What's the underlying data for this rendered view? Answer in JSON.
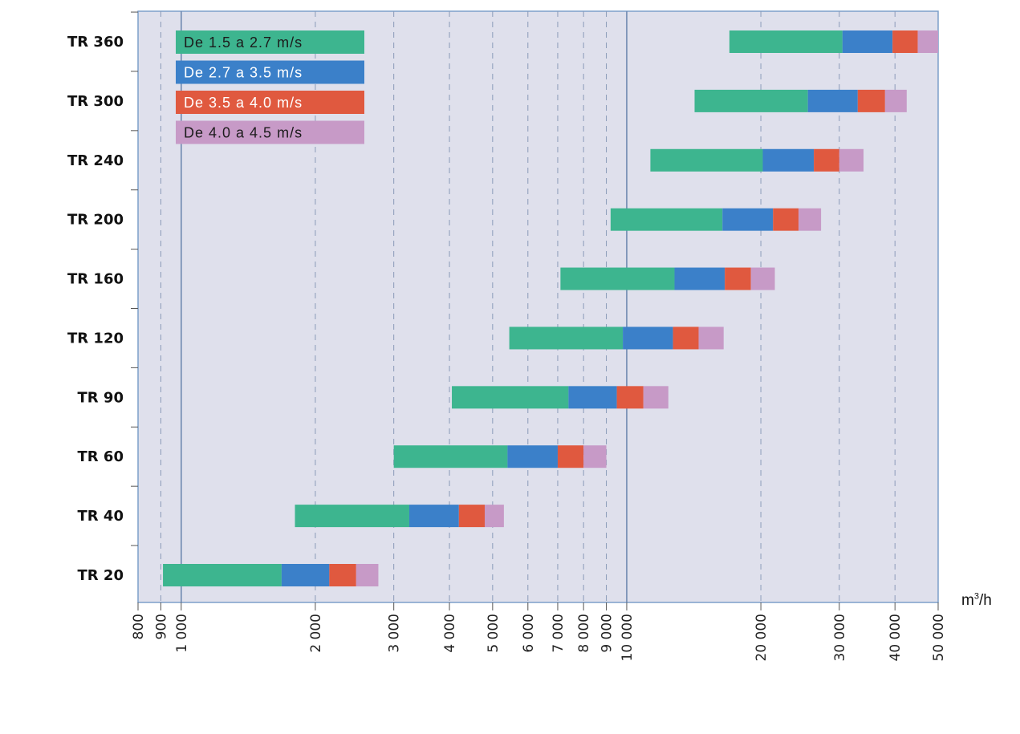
{
  "chart_data": {
    "type": "bar",
    "orientation": "horizontal",
    "stacked": true,
    "x_scale": "log",
    "xlim": [
      800,
      50000
    ],
    "xunit": "m³/h",
    "grid": true,
    "legend_position": "top-left",
    "categories": [
      "TR 360",
      "TR 300",
      "TR 240",
      "TR 200",
      "TR 160",
      "TR 120",
      "TR 90",
      "TR 60",
      "TR 40",
      "TR 20"
    ],
    "x_ticks": [
      {
        "value": 800,
        "label": "800",
        "major": false
      },
      {
        "value": 900,
        "label": "900",
        "major": false
      },
      {
        "value": 1000,
        "label": "1 000",
        "major": true
      },
      {
        "value": 2000,
        "label": "2 000",
        "major": false
      },
      {
        "value": 3000,
        "label": "3 000",
        "major": false
      },
      {
        "value": 4000,
        "label": "4 000",
        "major": false
      },
      {
        "value": 5000,
        "label": "5 000",
        "major": false
      },
      {
        "value": 6000,
        "label": "6 000",
        "major": false
      },
      {
        "value": 7000,
        "label": "7 000",
        "major": false
      },
      {
        "value": 8000,
        "label": "8 000",
        "major": false
      },
      {
        "value": 9000,
        "label": "9 000",
        "major": false
      },
      {
        "value": 10000,
        "label": "10 000",
        "major": true
      },
      {
        "value": 20000,
        "label": "20 000",
        "major": false
      },
      {
        "value": 30000,
        "label": "30 000",
        "major": false
      },
      {
        "value": 40000,
        "label": "40 000",
        "major": false
      },
      {
        "value": 50000,
        "label": "50 000",
        "major": false
      }
    ],
    "series": [
      {
        "name": "De 1.5 a 2.7 m/s",
        "color": "#3db58f"
      },
      {
        "name": "De 2.7 a 3.5 m/s",
        "color": "#3b80c9"
      },
      {
        "name": "De 3.5 a 4.0 m/s",
        "color": "#e0593f"
      },
      {
        "name": "De 4.0 a 4.5 m/s",
        "color": "#c79ac7"
      }
    ],
    "ranges": [
      [
        17000,
        30500,
        39500,
        45000,
        50000
      ],
      [
        14200,
        25500,
        33000,
        38000,
        42500
      ],
      [
        11300,
        20200,
        26300,
        30000,
        34000
      ],
      [
        9200,
        16400,
        21300,
        24300,
        27300
      ],
      [
        7100,
        12800,
        16600,
        19000,
        21500
      ],
      [
        5450,
        9800,
        12700,
        14500,
        16500
      ],
      [
        4050,
        7400,
        9500,
        10900,
        12400
      ],
      [
        3000,
        5400,
        7000,
        8000,
        9000
      ],
      [
        1800,
        3250,
        4200,
        4800,
        5300
      ],
      [
        910,
        1680,
        2150,
        2470,
        2770
      ]
    ]
  }
}
